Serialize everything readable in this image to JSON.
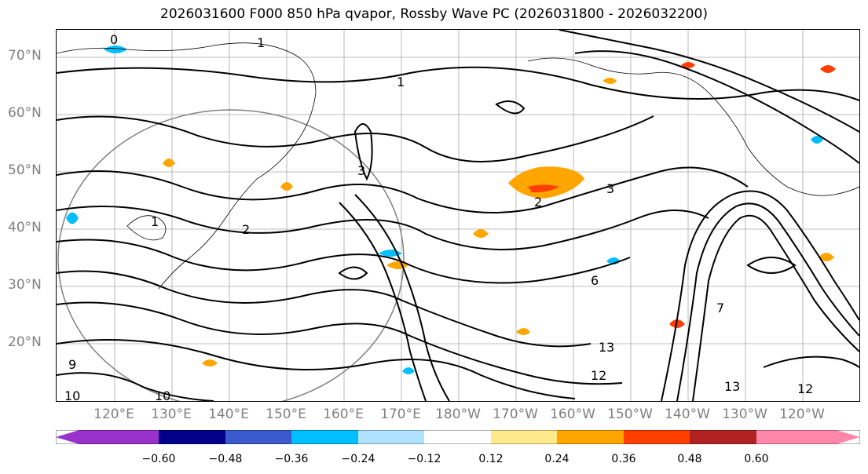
{
  "title": "2026031600 F000 850 hPa qvapor, Rossby Wave PC (2026031800 - 2026032200)",
  "lat_labels": [
    "70°N",
    "60°N",
    "50°N",
    "40°N",
    "30°N",
    "20°N"
  ],
  "lon_labels": [
    "120°E",
    "130°E",
    "140°E",
    "150°E",
    "160°E",
    "170°E",
    "180°W",
    "170°W",
    "160°W",
    "150°W",
    "140°W",
    "130°W",
    "120°W"
  ],
  "contour_labels": [
    "0",
    "1",
    "1",
    "1",
    "2",
    "2",
    "3",
    "3",
    "6",
    "7",
    "9",
    "10",
    "10",
    "12",
    "12",
    "13",
    "13"
  ],
  "colorbar": {
    "colors": [
      "#9932cc",
      "#00008b",
      "#3a5acd",
      "#00bfff",
      "#b0e2ff",
      "#ffffff",
      "#ffe98a",
      "#ffa500",
      "#ff3f00",
      "#b22222",
      "#ff88aa"
    ],
    "ticks": [
      "−0.60",
      "−0.48",
      "−0.36",
      "−0.24",
      "−0.12",
      "0.12",
      "0.24",
      "0.36",
      "0.48",
      "0.60"
    ]
  },
  "colors": {
    "land": "#000000",
    "grid": "#808080",
    "contour": "#000000"
  }
}
